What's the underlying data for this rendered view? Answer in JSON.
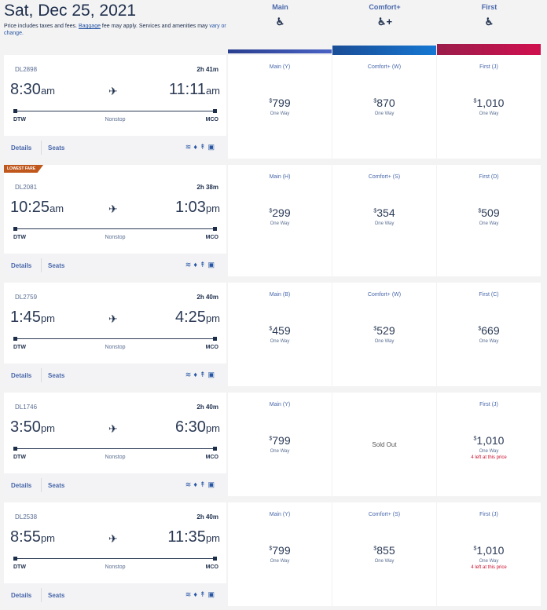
{
  "header": {
    "date": "Sat, Dec 25, 2021",
    "note_pre": "Price includes taxes and fees.",
    "note_baggage": "Baggage",
    "note_mid": " fee may apply. Services and amenities may ",
    "note_vary": "vary or change."
  },
  "cabins": [
    {
      "label": "Main",
      "icon": "seat-icon",
      "color": "#3a4fa8"
    },
    {
      "label": "Comfort+",
      "icon": "seat-plus-icon",
      "color": "#1a63b8"
    },
    {
      "label": "First",
      "icon": "seat-icon",
      "color": "#c0144f"
    }
  ],
  "labels": {
    "one_way": "One Way",
    "details": "Details",
    "seats": "Seats",
    "nonstop": "Nonstop",
    "sold_out": "Sold Out",
    "lowest_fare": "LOWEST FARE",
    "amenities": [
      "wifi-icon",
      "power-icon",
      "usb-icon",
      "screen-icon"
    ]
  },
  "flights": [
    {
      "number": "DL2898",
      "duration": "2h 41m",
      "dep_time": "8:30",
      "dep_ampm": "am",
      "arr_time": "11:11",
      "arr_ampm": "am",
      "origin": "DTW",
      "dest": "MCO",
      "badge": "",
      "fares": [
        {
          "class": "Main (Y)",
          "price": "799"
        },
        {
          "class": "Comfort+ (W)",
          "price": "870"
        },
        {
          "class": "First (J)",
          "price": "1,010"
        }
      ]
    },
    {
      "number": "DL2081",
      "duration": "2h 38m",
      "dep_time": "10:25",
      "dep_ampm": "am",
      "arr_time": "1:03",
      "arr_ampm": "pm",
      "origin": "DTW",
      "dest": "MCO",
      "badge": "LOWEST FARE",
      "fares": [
        {
          "class": "Main (H)",
          "price": "299"
        },
        {
          "class": "Comfort+ (S)",
          "price": "354"
        },
        {
          "class": "First (D)",
          "price": "509"
        }
      ]
    },
    {
      "number": "DL2759",
      "duration": "2h 40m",
      "dep_time": "1:45",
      "dep_ampm": "pm",
      "arr_time": "4:25",
      "arr_ampm": "pm",
      "origin": "DTW",
      "dest": "MCO",
      "badge": "",
      "fares": [
        {
          "class": "Main (B)",
          "price": "459"
        },
        {
          "class": "Comfort+ (W)",
          "price": "529"
        },
        {
          "class": "First (C)",
          "price": "669"
        }
      ]
    },
    {
      "number": "DL1746",
      "duration": "2h 40m",
      "dep_time": "3:50",
      "dep_ampm": "pm",
      "arr_time": "6:30",
      "arr_ampm": "pm",
      "origin": "DTW",
      "dest": "MCO",
      "badge": "",
      "fares": [
        {
          "class": "Main (Y)",
          "price": "799"
        },
        {
          "sold_out": true
        },
        {
          "class": "First (J)",
          "price": "1,010",
          "left": "4 left at this price"
        }
      ]
    },
    {
      "number": "DL2538",
      "duration": "2h 40m",
      "dep_time": "8:55",
      "dep_ampm": "pm",
      "arr_time": "11:35",
      "arr_ampm": "pm",
      "origin": "DTW",
      "dest": "MCO",
      "badge": "",
      "fares": [
        {
          "class": "Main (Y)",
          "price": "799"
        },
        {
          "class": "Comfort+ (S)",
          "price": "855"
        },
        {
          "class": "First (J)",
          "price": "1,010",
          "left": "4 left at this price"
        }
      ]
    }
  ]
}
